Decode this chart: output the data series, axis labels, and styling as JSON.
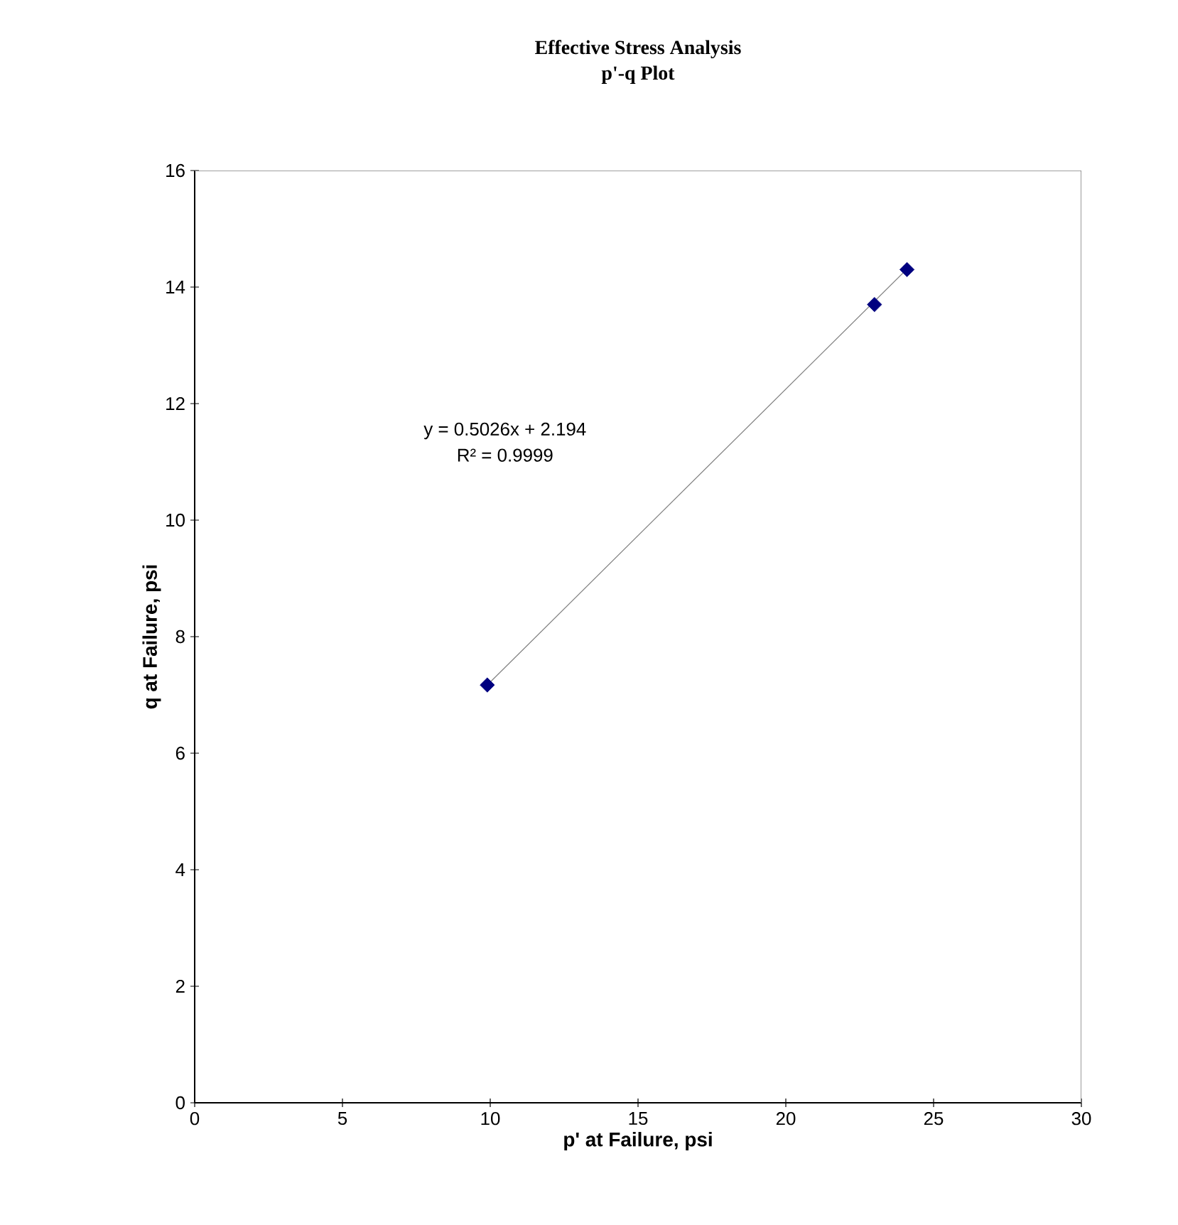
{
  "chart_data": {
    "type": "scatter",
    "title": "Effective Stress Analysis",
    "subtitle": "p'-q Plot",
    "xlabel": "p' at Failure, psi",
    "ylabel": "q at Failure, psi",
    "annotations": [
      "y = 0.5026x + 2.194",
      "R² = 0.9999"
    ],
    "series": [
      {
        "color": "#000080",
        "marker": "diamond",
        "x": [
          9.9,
          23.0,
          24.1
        ],
        "values": [
          7.17,
          13.7,
          14.3
        ]
      },
      {
        "type": "line",
        "color": "#808080",
        "marker": "none",
        "line_style": "solid",
        "x": [
          9.9,
          24.1
        ],
        "values": [
          7.17,
          14.31
        ]
      }
    ],
    "xlim": [
      0,
      30
    ],
    "ylim": [
      0,
      16
    ],
    "xticks": [
      0,
      5,
      10,
      15,
      20,
      25,
      30
    ],
    "yticks": [
      0,
      2,
      4,
      6,
      8,
      10,
      12,
      14,
      16
    ],
    "grid": false
  }
}
